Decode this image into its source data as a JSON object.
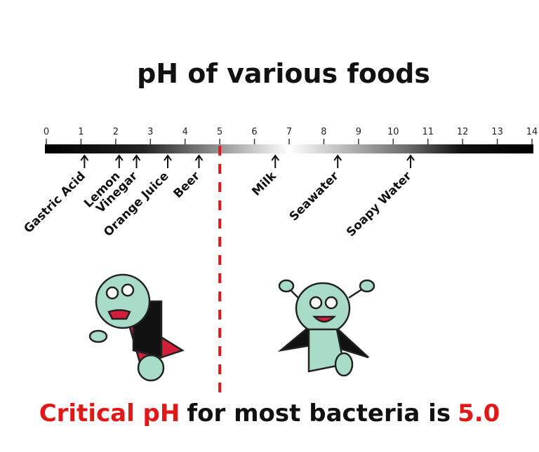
{
  "title": "pH  of various foods",
  "scale": {
    "lim": [
      0,
      14
    ],
    "ticks": [
      0,
      1,
      2,
      3,
      4,
      5,
      6,
      7,
      8,
      9,
      10,
      11,
      12,
      13,
      14
    ]
  },
  "items": [
    {
      "label": "Gastric Acid",
      "ph": 1.1
    },
    {
      "label": "Lemon",
      "ph": 2.1
    },
    {
      "label": "Vinegar",
      "ph": 2.6
    },
    {
      "label": "Orange Juice",
      "ph": 3.5
    },
    {
      "label": "Beer",
      "ph": 4.4
    },
    {
      "label": "Milk",
      "ph": 6.6
    },
    {
      "label": "Seawater",
      "ph": 8.4
    },
    {
      "label": "Soapy Water",
      "ph": 10.5
    }
  ],
  "critical": {
    "value": 5,
    "label": "5.0"
  },
  "caption": {
    "lead": "Critical pH",
    "middle": "for most bacteria is"
  }
}
